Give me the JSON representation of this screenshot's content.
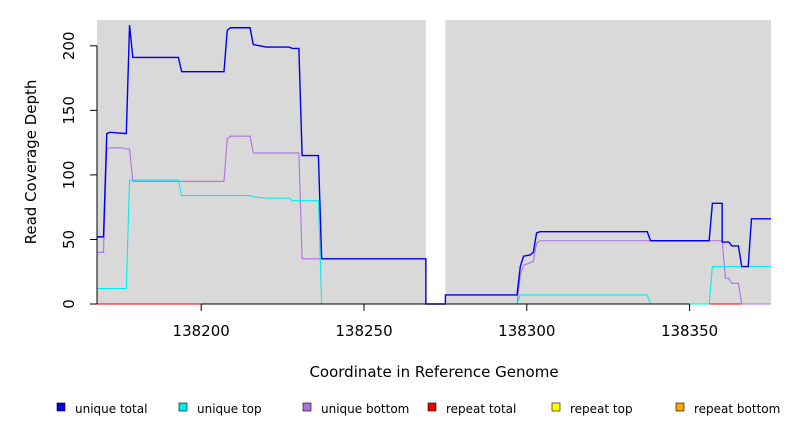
{
  "chart_data": {
    "type": "line",
    "title": "",
    "xlabel": "Coordinate in Reference Genome",
    "ylabel": "Read Coverage Depth",
    "xlim": [
      138168,
      138375
    ],
    "ylim": [
      0,
      220
    ],
    "xticks": [
      138200,
      138250,
      138300,
      138350
    ],
    "yticks": [
      0,
      50,
      100,
      150,
      200
    ],
    "grid": false,
    "background": "#d9d9d9",
    "gap": [
      138269,
      138275
    ],
    "legend_position": "bottom",
    "series": [
      {
        "name": "unique total",
        "color": "#0000ee",
        "points": [
          [
            138168,
            52
          ],
          [
            138170,
            52
          ],
          [
            138171,
            132
          ],
          [
            138172,
            133
          ],
          [
            138177,
            132
          ],
          [
            138178,
            216
          ],
          [
            138179,
            191
          ],
          [
            138193,
            191
          ],
          [
            138194,
            180
          ],
          [
            138207,
            180
          ],
          [
            138208,
            212
          ],
          [
            138209,
            214
          ],
          [
            138215,
            214
          ],
          [
            138216,
            201
          ],
          [
            138218,
            200
          ],
          [
            138220,
            199
          ],
          [
            138227,
            199
          ],
          [
            138228,
            198
          ],
          [
            138230,
            198
          ],
          [
            138231,
            115
          ],
          [
            138236,
            115
          ],
          [
            138237,
            35
          ],
          [
            138269,
            35
          ],
          [
            138269,
            0
          ],
          [
            138275,
            0
          ],
          [
            138275,
            7
          ],
          [
            138297,
            7
          ],
          [
            138298,
            29
          ],
          [
            138299,
            37
          ],
          [
            138301,
            38
          ],
          [
            138302,
            40
          ],
          [
            138303,
            55
          ],
          [
            138304,
            56
          ],
          [
            138337,
            56
          ],
          [
            138338,
            49
          ],
          [
            138356,
            49
          ],
          [
            138357,
            78
          ],
          [
            138360,
            78
          ],
          [
            138360,
            48
          ],
          [
            138362,
            48
          ],
          [
            138363,
            45
          ],
          [
            138365,
            45
          ],
          [
            138366,
            29
          ],
          [
            138368,
            29
          ],
          [
            138369,
            66
          ],
          [
            138375,
            66
          ]
        ]
      },
      {
        "name": "unique top",
        "color": "#00eeee",
        "points": [
          [
            138168,
            12
          ],
          [
            138177,
            12
          ],
          [
            138178,
            96
          ],
          [
            138193,
            96
          ],
          [
            138194,
            84
          ],
          [
            138215,
            84
          ],
          [
            138216,
            83
          ],
          [
            138220,
            82
          ],
          [
            138227,
            82
          ],
          [
            138228,
            80
          ],
          [
            138236,
            80
          ],
          [
            138237,
            0
          ],
          [
            138297,
            0
          ],
          [
            138298,
            7
          ],
          [
            138337,
            7
          ],
          [
            138338,
            0
          ],
          [
            138356,
            0
          ],
          [
            138357,
            29
          ],
          [
            138375,
            29
          ]
        ]
      },
      {
        "name": "unique bottom",
        "color": "#b070e0",
        "points": [
          [
            138168,
            40
          ],
          [
            138170,
            40
          ],
          [
            138171,
            120
          ],
          [
            138172,
            121
          ],
          [
            138176,
            121
          ],
          [
            138177,
            120
          ],
          [
            138178,
            120
          ],
          [
            138179,
            95
          ],
          [
            138207,
            95
          ],
          [
            138208,
            128
          ],
          [
            138209,
            130
          ],
          [
            138215,
            130
          ],
          [
            138216,
            117
          ],
          [
            138230,
            117
          ],
          [
            138231,
            35
          ],
          [
            138237,
            35
          ],
          [
            138269,
            35
          ],
          [
            138269,
            0
          ],
          [
            138297,
            0
          ],
          [
            138298,
            22
          ],
          [
            138299,
            30
          ],
          [
            138301,
            32
          ],
          [
            138302,
            33
          ],
          [
            138303,
            47
          ],
          [
            138304,
            49
          ],
          [
            138356,
            49
          ],
          [
            138357,
            49
          ],
          [
            138360,
            49
          ],
          [
            138361,
            20
          ],
          [
            138362,
            20
          ],
          [
            138363,
            16
          ],
          [
            138365,
            16
          ],
          [
            138366,
            0
          ],
          [
            138375,
            0
          ]
        ]
      },
      {
        "name": "repeat total",
        "color": "#ee0000",
        "points": [
          [
            138168,
            0
          ],
          [
            138375,
            0
          ]
        ]
      },
      {
        "name": "repeat top",
        "color": "#ffff00",
        "points": [
          [
            138168,
            0
          ],
          [
            138375,
            0
          ]
        ]
      },
      {
        "name": "repeat bottom",
        "color": "#ffa500",
        "points": [
          [
            138168,
            0
          ],
          [
            138375,
            0
          ]
        ]
      }
    ]
  }
}
